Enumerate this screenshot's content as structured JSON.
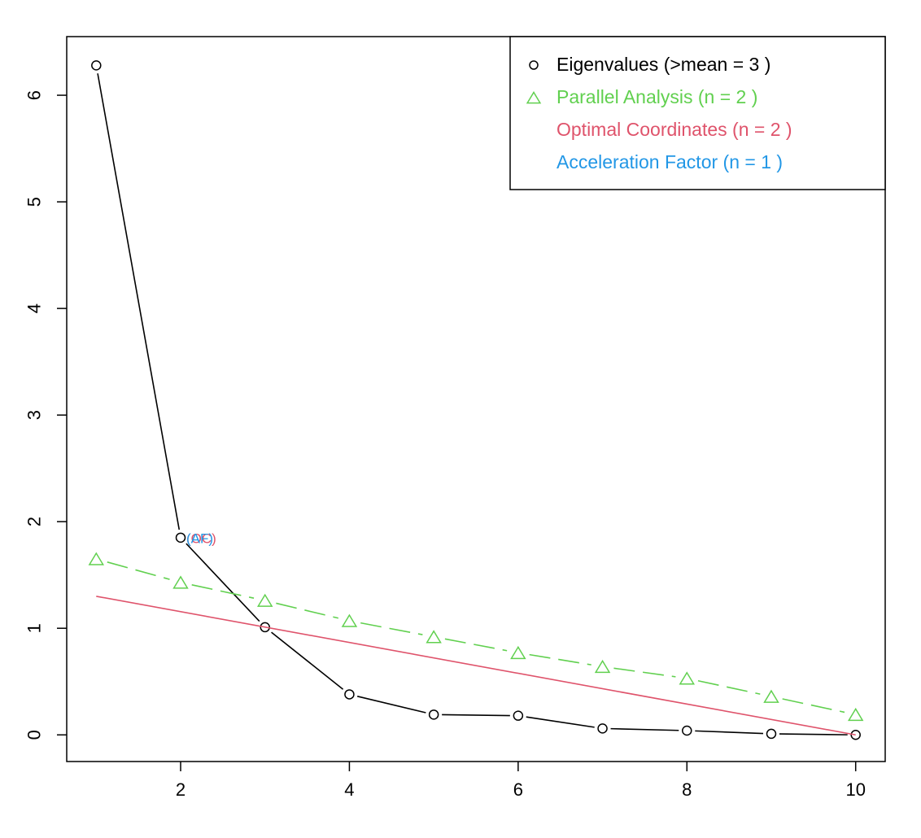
{
  "chart_data": {
    "type": "line",
    "title": "",
    "xlabel": "",
    "ylabel": "",
    "xlim": [
      0.65,
      10.35
    ],
    "ylim": [
      -0.25,
      6.55
    ],
    "x_ticks": [
      2,
      4,
      6,
      8,
      10
    ],
    "y_ticks": [
      0,
      1,
      2,
      3,
      4,
      5,
      6
    ],
    "grid": false,
    "legend_position": "top-right",
    "series": [
      {
        "name": "Eigenvalues (>mean  =  3 )",
        "color": "#000000",
        "marker": "circle",
        "line": "solid",
        "x": [
          1,
          2,
          3,
          4,
          5,
          6,
          7,
          8,
          9,
          10
        ],
        "y": [
          6.28,
          1.85,
          1.01,
          0.38,
          0.19,
          0.18,
          0.06,
          0.04,
          0.01,
          0.0
        ]
      },
      {
        "name": "Parallel Analysis (n =  2 )",
        "color": "#61D04F",
        "marker": "triangle",
        "line": "dashed",
        "x": [
          1,
          2,
          3,
          4,
          5,
          6,
          7,
          8,
          9,
          10
        ],
        "y": [
          1.65,
          1.43,
          1.26,
          1.07,
          0.92,
          0.77,
          0.64,
          0.53,
          0.36,
          0.19
        ]
      },
      {
        "name": "Optimal Coordinates (n =  2 )",
        "color": "#DF536B",
        "marker": "none",
        "line": "solid",
        "x": [
          1,
          10
        ],
        "y": [
          1.3,
          0.0
        ]
      },
      {
        "name": "Acceleration Factor (n =  1 )",
        "color": "#2297E6",
        "marker": "none",
        "line": "none",
        "x": [],
        "y": []
      }
    ],
    "annotations": [
      {
        "label": "(OC)",
        "x": 2,
        "y": 1.85,
        "color": "#DF536B"
      },
      {
        "label": "(AF)",
        "x": 2,
        "y": 1.85,
        "color": "#2297E6"
      }
    ]
  }
}
